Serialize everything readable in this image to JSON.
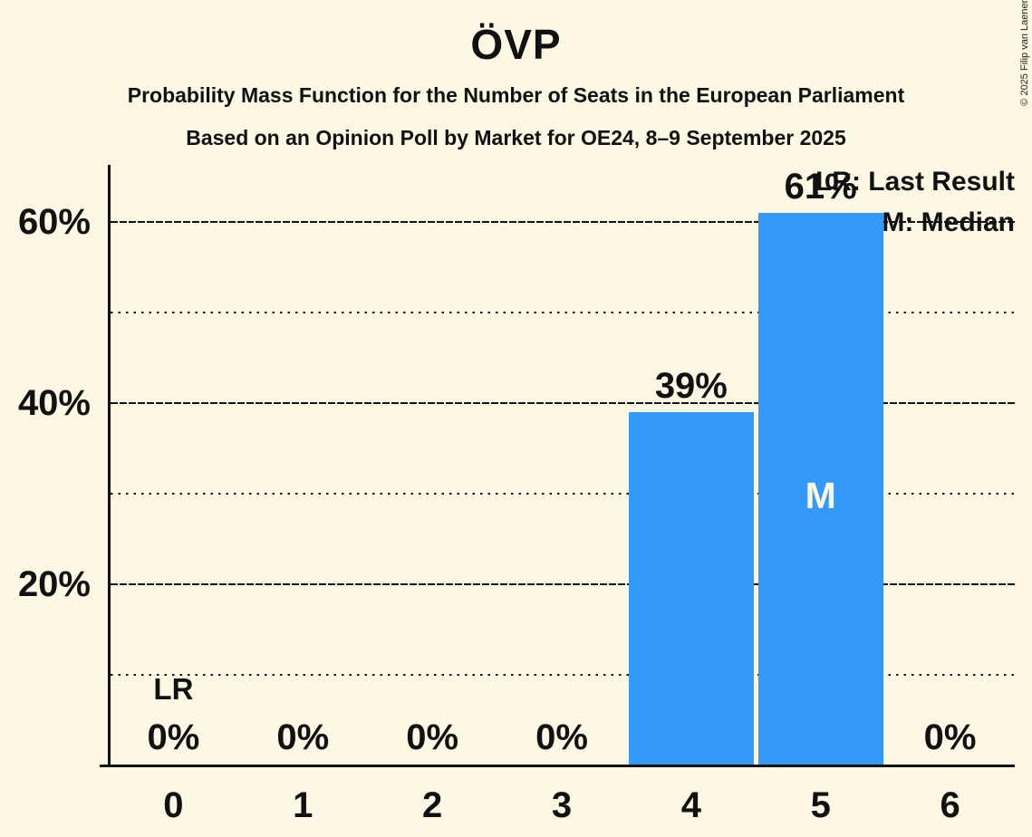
{
  "page": {
    "background_color": "#FCF8E3",
    "ink_color": "#111111"
  },
  "header": {
    "title": "ÖVP",
    "subtitle1": "Probability Mass Function for the Number of Seats in the European Parliament",
    "subtitle2": "Based on an Opinion Poll by Market for OE24, 8–9 September 2025"
  },
  "legend": {
    "lr": "LR: Last Result",
    "m": "M: Median"
  },
  "copyright": "© 2025 Filip van Laenen",
  "chart_data": {
    "type": "bar",
    "title": "ÖVP",
    "xlabel": "",
    "ylabel": "",
    "categories": [
      "0",
      "1",
      "2",
      "3",
      "4",
      "5",
      "6"
    ],
    "values": [
      0,
      0,
      0,
      0,
      39,
      61,
      0
    ],
    "value_labels": [
      "0%",
      "0%",
      "0%",
      "0%",
      "39%",
      "61%",
      "0%"
    ],
    "ylim": [
      0,
      66
    ],
    "yticks_major": [
      20,
      40,
      60
    ],
    "yticks_minor": [
      10,
      30,
      50
    ],
    "ytick_suffix": "%",
    "grid": true,
    "legend_position": "top-right",
    "median_category": "5",
    "median_marker": "M",
    "last_result_category": "0",
    "last_result_marker": "LR",
    "bar_color": "#3399FA",
    "bar_label_color": "#FCF8E3"
  }
}
